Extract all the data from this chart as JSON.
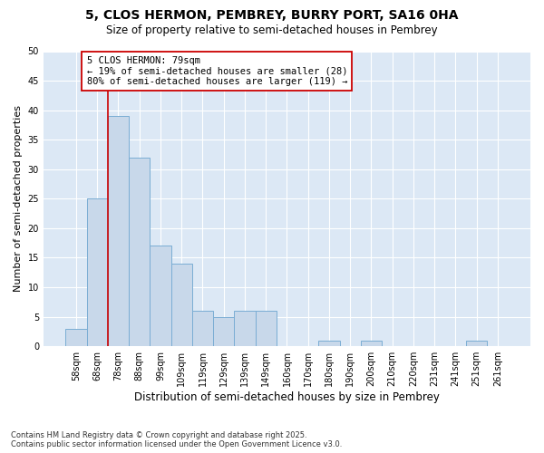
{
  "title_line1": "5, CLOS HERMON, PEMBREY, BURRY PORT, SA16 0HA",
  "title_line2": "Size of property relative to semi-detached houses in Pembrey",
  "xlabel": "Distribution of semi-detached houses by size in Pembrey",
  "ylabel": "Number of semi-detached properties",
  "categories": [
    "58sqm",
    "68sqm",
    "78sqm",
    "88sqm",
    "99sqm",
    "109sqm",
    "119sqm",
    "129sqm",
    "139sqm",
    "149sqm",
    "160sqm",
    "170sqm",
    "180sqm",
    "190sqm",
    "200sqm",
    "210sqm",
    "220sqm",
    "231sqm",
    "241sqm",
    "251sqm",
    "261sqm"
  ],
  "values": [
    3,
    25,
    39,
    32,
    17,
    14,
    6,
    5,
    6,
    6,
    0,
    0,
    1,
    0,
    1,
    0,
    0,
    0,
    0,
    1,
    0
  ],
  "bar_color": "#c8d8ea",
  "bar_edge_color": "#7aadd4",
  "pct_smaller": "19%",
  "n_smaller": 28,
  "pct_larger": "80%",
  "n_larger": 119,
  "annotation_box_color": "#ffffff",
  "annotation_box_edge": "#cc0000",
  "vline_color": "#cc0000",
  "vline_x": 2,
  "ylim": [
    0,
    50
  ],
  "yticks": [
    0,
    5,
    10,
    15,
    20,
    25,
    30,
    35,
    40,
    45,
    50
  ],
  "footnote1": "Contains HM Land Registry data © Crown copyright and database right 2025.",
  "footnote2": "Contains public sector information licensed under the Open Government Licence v3.0.",
  "plot_bg_color": "#dce8f5"
}
